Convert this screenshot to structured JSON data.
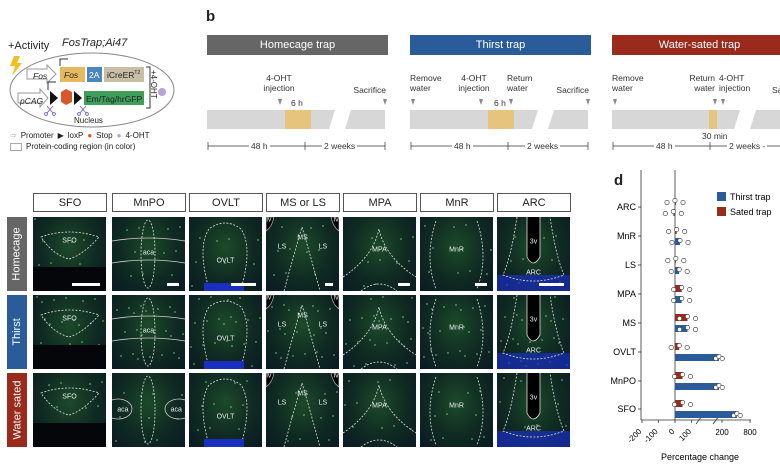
{
  "panel_a": {
    "title": "FosTrap;Ai47",
    "activity": "+Activity",
    "fos_promoter": "Fos",
    "fos_gene": "Fos",
    "seg_2a": "2A",
    "icre": "iCreER",
    "icre_sup": "T2",
    "pcag": "pCAG",
    "reporter": "Em/Tag/hrGFP",
    "ohT": "+4-OHT",
    "nucleus": "Nucleus",
    "legend": {
      "promoter": "Promoter",
      "loxp": "loxP",
      "stop": "Stop",
      "oht": "4-OHT",
      "coding": "Protein-coding region (in color)"
    },
    "colors": {
      "fos": "#e8b860",
      "seg2a": "#4a86c0",
      "icre": "#c9bfa8",
      "reporter": "#3e9e5a",
      "stop": "#d9552b",
      "oht": "#b9a0d8"
    }
  },
  "panel_b": {
    "label": "b",
    "timelines": [
      {
        "title": "Homecage trap",
        "color": "#666666",
        "events": [
          "4-OHT\ninjection",
          "Sacrifice"
        ],
        "window": "6 h",
        "durations": [
          "48 h",
          "2 weeks"
        ]
      },
      {
        "title": "Thirst trap",
        "color": "#2a5c9a",
        "events": [
          "Remove\nwater",
          "4-OHT\ninjection",
          "Return\nwater",
          "Sacrifice"
        ],
        "window": "6 h",
        "durations": [
          "48 h",
          "2 weeks"
        ]
      },
      {
        "title": "Water-sated trap",
        "color": "#9a2a1c",
        "events": [
          "Remove\nwater",
          "Return\nwater",
          "4-OHT\ninjection",
          "Sacri"
        ],
        "window": "30 min",
        "durations": [
          "48 h",
          "2 weeks -"
        ]
      }
    ],
    "window_color": "#e6c47e",
    "bar_color": "#d7d7d7"
  },
  "panel_c": {
    "columns": [
      "SFO",
      "MnPO",
      "OVLT",
      "MS or LS",
      "MPA",
      "MnR",
      "ARC"
    ],
    "rows": [
      {
        "label": "Homecage",
        "color": "#666666"
      },
      {
        "label": "Thirst",
        "color": "#2a5c9a"
      },
      {
        "label": "Water sated",
        "color": "#9a2a1c"
      }
    ],
    "region_labels": {
      "sfo": "SFO",
      "aca": "aca",
      "ovlt": "OVLT",
      "ms": "MS",
      "ls": "LS",
      "lv": "lv",
      "mpa": "MPA",
      "mnr": "MnR",
      "v3": "3v",
      "arc": "ARC"
    }
  },
  "chart_data": {
    "label": "d",
    "type": "bar",
    "orientation": "horizontal",
    "categories": [
      "ARC",
      "MnR",
      "LS",
      "MPA",
      "MS",
      "OVLT",
      "MnPO",
      "SFO"
    ],
    "series": [
      {
        "name": "Thirst trap",
        "color": "#2a5c9a",
        "values": [
          -10,
          30,
          25,
          40,
          75,
          190,
          190,
          520
        ]
      },
      {
        "name": "Sated trap",
        "color": "#9a2a1c",
        "values": [
          0,
          10,
          5,
          40,
          75,
          25,
          45,
          45
        ]
      }
    ],
    "xlabel": "Percentage change",
    "xticks": [
      "-200",
      "-100",
      "0",
      "100",
      "200",
      "800"
    ],
    "axis_break": "between 100 and 200",
    "legend": "top-right"
  }
}
